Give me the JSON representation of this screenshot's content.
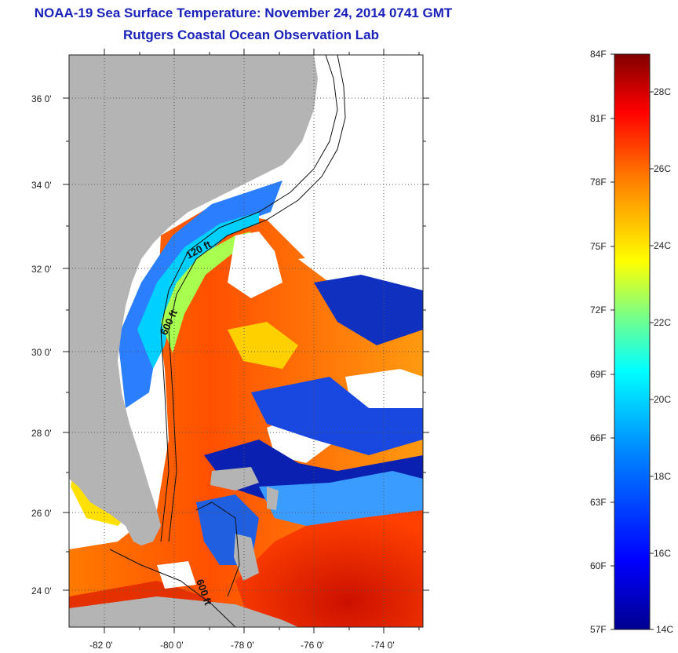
{
  "header": {
    "title": "NOAA-19 Sea Surface Temperature:  November 24, 2014 0741 GMT",
    "subtitle": "Rutgers Coastal Ocean Observation Lab"
  },
  "map": {
    "lat_labels": [
      "36 0'",
      "34 0'",
      "32 0'",
      "30 0'",
      "28 0'",
      "26 0'",
      "24 0'"
    ],
    "lon_labels": [
      "-82 0'",
      "-80 0'",
      "-78 0'",
      "-76 0'",
      "-74 0'"
    ],
    "contour_labels": [
      "120 ft",
      "600 ft",
      "600 ft"
    ],
    "land_color": "#b4b4b4"
  },
  "colorbar": {
    "fahrenheit_labels": [
      "84F",
      "81F",
      "78F",
      "75F",
      "72F",
      "69F",
      "66F",
      "63F",
      "60F",
      "57F"
    ],
    "celsius_labels": [
      "28C",
      "26C",
      "24C",
      "22C",
      "20C",
      "18C",
      "16C",
      "14C"
    ],
    "colors": [
      "#00008f",
      "#0000ff",
      "#0080ff",
      "#00ffff",
      "#80ff80",
      "#ffff00",
      "#ff8000",
      "#ff0000",
      "#800000"
    ]
  }
}
